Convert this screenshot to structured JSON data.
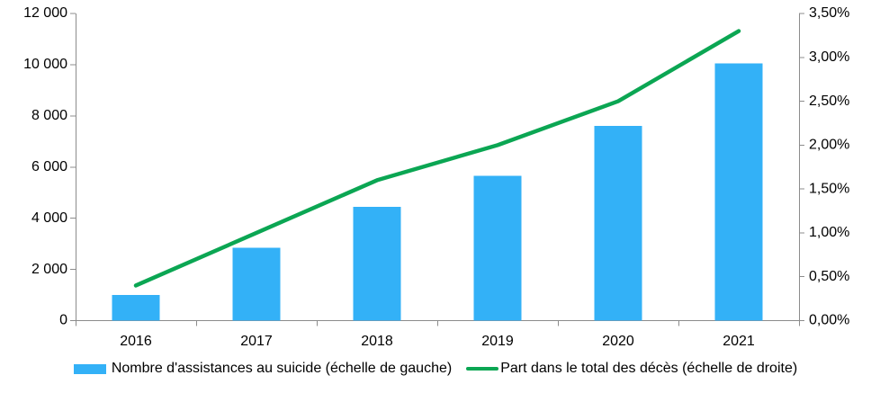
{
  "chart_data": {
    "type": "bar",
    "subtype": "combo-bar-line-dual-axis",
    "title": "",
    "categories": [
      "2016",
      "2017",
      "2018",
      "2019",
      "2020",
      "2021"
    ],
    "series": [
      {
        "name": "Nombre d'assistances au suicide (échelle de gauche)",
        "type": "bar",
        "axis": "left",
        "color": "#33B1F7",
        "values": [
          1000,
          2850,
          4450,
          5650,
          7600,
          10050
        ]
      },
      {
        "name": "Part dans le total des décès (échelle de droite)",
        "type": "line",
        "axis": "right",
        "color": "#0BA653",
        "values": [
          0.4,
          1.0,
          1.6,
          2.0,
          2.5,
          3.3
        ]
      }
    ],
    "left_axis": {
      "min": 0,
      "max": 12000,
      "step": 2000,
      "tick_labels": [
        "0",
        "2 000",
        "4 000",
        "6 000",
        "8 000",
        "10 000",
        "12 000"
      ]
    },
    "right_axis": {
      "min": 0,
      "max": 3.5,
      "step": 0.5,
      "tick_labels": [
        "0,00%",
        "0,50%",
        "1,00%",
        "1,50%",
        "2,00%",
        "2,50%",
        "3,00%",
        "3,50%"
      ]
    },
    "grid": false,
    "legend_position": "bottom"
  },
  "legend": {
    "items": [
      {
        "label": "Nombre d'assistances au suicide (échelle de gauche)",
        "marker": "bar",
        "color": "#33B1F7"
      },
      {
        "label": "Part dans le total des décès (échelle de droite)",
        "marker": "line",
        "color": "#0BA653"
      }
    ]
  },
  "style": {
    "axis_color": "#8C8C8C",
    "text_color": "#000000",
    "background": "#FFFFFF"
  }
}
